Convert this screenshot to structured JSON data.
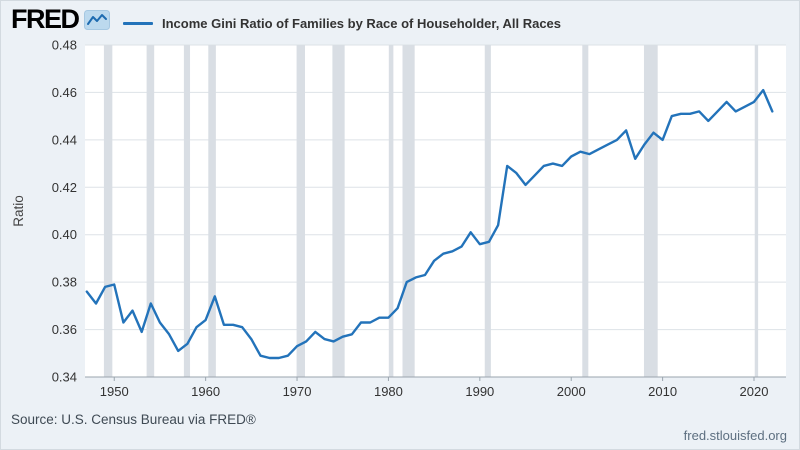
{
  "header": {
    "logo_text": "FRED",
    "legend_label": "Income Gini Ratio of Families by Race of Householder, All Races"
  },
  "footer": {
    "source": "Source: U.S. Census Bureau via FRED®",
    "site": "fred.stlouisfed.org"
  },
  "chart_data": {
    "type": "line",
    "title": "Income Gini Ratio of Families by Race of Householder, All Races",
    "xlabel": "",
    "ylabel": "Ratio",
    "ylim": [
      0.34,
      0.48
    ],
    "x_range": [
      1946.8,
      2023.5
    ],
    "y_ticks": [
      0.34,
      0.36,
      0.38,
      0.4,
      0.42,
      0.44,
      0.46,
      0.48
    ],
    "x_ticks": [
      1950,
      1960,
      1970,
      1980,
      1990,
      2000,
      2010,
      2020
    ],
    "grid": "horizontal",
    "legend_position": "top",
    "years": [
      1947,
      1948,
      1949,
      1950,
      1951,
      1952,
      1953,
      1954,
      1955,
      1956,
      1957,
      1958,
      1959,
      1960,
      1961,
      1962,
      1963,
      1964,
      1965,
      1966,
      1967,
      1968,
      1969,
      1970,
      1971,
      1972,
      1973,
      1974,
      1975,
      1976,
      1977,
      1978,
      1979,
      1980,
      1981,
      1982,
      1983,
      1984,
      1985,
      1986,
      1987,
      1988,
      1989,
      1990,
      1991,
      1992,
      1993,
      1994,
      1995,
      1996,
      1997,
      1998,
      1999,
      2000,
      2001,
      2002,
      2003,
      2004,
      2005,
      2006,
      2007,
      2008,
      2009,
      2010,
      2011,
      2012,
      2013,
      2014,
      2015,
      2016,
      2017,
      2018,
      2019,
      2020,
      2021,
      2022
    ],
    "values": [
      0.376,
      0.371,
      0.378,
      0.379,
      0.363,
      0.368,
      0.359,
      0.371,
      0.363,
      0.358,
      0.351,
      0.354,
      0.361,
      0.364,
      0.374,
      0.362,
      0.362,
      0.361,
      0.356,
      0.349,
      0.348,
      0.348,
      0.349,
      0.353,
      0.355,
      0.359,
      0.356,
      0.355,
      0.357,
      0.358,
      0.363,
      0.363,
      0.365,
      0.365,
      0.369,
      0.38,
      0.382,
      0.383,
      0.389,
      0.392,
      0.393,
      0.395,
      0.401,
      0.396,
      0.397,
      0.404,
      0.429,
      0.426,
      0.421,
      0.425,
      0.429,
      0.43,
      0.429,
      0.433,
      0.435,
      0.434,
      0.436,
      0.438,
      0.44,
      0.444,
      0.432,
      0.438,
      0.443,
      0.44,
      0.45,
      0.451,
      0.451,
      0.452,
      0.448,
      0.452,
      0.456,
      0.452,
      0.454,
      0.456,
      0.461,
      0.452
    ],
    "recession_bands": [
      [
        1948.87,
        1949.79
      ],
      [
        1953.54,
        1954.37
      ],
      [
        1957.62,
        1958.29
      ],
      [
        1960.29,
        1961.12
      ],
      [
        1969.95,
        1970.87
      ],
      [
        1973.87,
        1975.21
      ],
      [
        1980.04,
        1980.54
      ],
      [
        1981.54,
        1982.87
      ],
      [
        1990.54,
        1991.21
      ],
      [
        2001.21,
        2001.87
      ],
      [
        2007.96,
        2009.46
      ],
      [
        2020.08,
        2020.45
      ]
    ],
    "colors": {
      "line": "#2373ba",
      "recession": "#d9dee4",
      "grid": "#dde2e7",
      "axis_line": "#9aa4ad",
      "axis_text": "#333333",
      "plot_bg": "#ffffff",
      "page_bg": "#ecf1f6"
    }
  }
}
